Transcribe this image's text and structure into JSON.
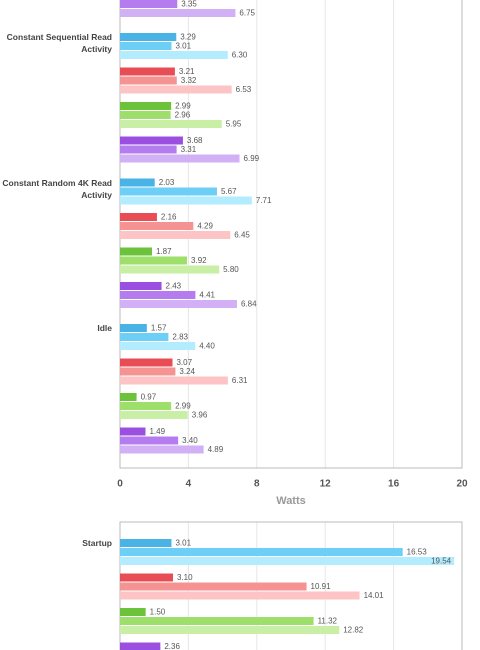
{
  "chart_data": [
    {
      "type": "bar",
      "orientation": "horizontal",
      "x_label": "Watts",
      "xlim": [
        0,
        20
      ],
      "xticks": [
        0,
        4,
        8,
        12,
        16,
        20
      ],
      "grid": true,
      "categories": [
        null,
        "Constant Sequential Read Activity",
        "Constant Random 4K Read Activity",
        "Idle"
      ],
      "series": [
        {
          "color": "#4ab3e6",
          "values": [
            null,
            3.29,
            2.03,
            1.57
          ],
          "value_labels": [
            null,
            "3.29",
            "2.03",
            "1.57"
          ]
        },
        {
          "color": "#6dcff6",
          "values": [
            null,
            3.01,
            5.67,
            2.83
          ],
          "value_labels": [
            null,
            "3.01",
            "5.67",
            "2.83"
          ]
        },
        {
          "color": "#b3ecff",
          "values": [
            null,
            6.3,
            7.71,
            4.4
          ],
          "value_labels": [
            null,
            "6.30",
            "7.71",
            "4.40"
          ]
        },
        {
          "color": "#e84c55",
          "values": [
            null,
            3.21,
            2.16,
            3.07
          ],
          "value_labels": [
            null,
            "3.21",
            "2.16",
            "3.07"
          ]
        },
        {
          "color": "#f59393",
          "values": [
            null,
            3.32,
            4.29,
            3.24
          ],
          "value_labels": [
            null,
            "3.32",
            "4.29",
            "3.24"
          ]
        },
        {
          "color": "#fcc4c4",
          "values": [
            null,
            6.53,
            6.45,
            6.31
          ],
          "value_labels": [
            null,
            "6.53",
            "6.45",
            "6.31"
          ]
        },
        {
          "color": "#6cc23a",
          "values": [
            null,
            2.99,
            1.87,
            0.97
          ],
          "value_labels": [
            null,
            "2.99",
            "1.87",
            "0.97"
          ]
        },
        {
          "color": "#9ddf6a",
          "values": [
            null,
            2.96,
            3.92,
            2.99
          ],
          "value_labels": [
            null,
            "2.96",
            "3.92",
            "2.99"
          ]
        },
        {
          "color": "#c9efa6",
          "values": [
            null,
            5.95,
            5.8,
            3.96
          ],
          "value_labels": [
            null,
            "5.95",
            "5.80",
            "3.96"
          ]
        },
        {
          "color": "#9b4fe0",
          "values": [
            null,
            3.68,
            2.43,
            1.49
          ],
          "value_labels": [
            null,
            "3.68",
            "2.43",
            "1.49"
          ]
        },
        {
          "color": "#b57cef",
          "values": [
            3.35,
            3.31,
            4.41,
            3.4
          ],
          "value_labels": [
            "3.35",
            "3.31",
            "4.41",
            "3.40"
          ]
        },
        {
          "color": "#d2b0f5",
          "values": [
            6.75,
            6.99,
            6.84,
            4.89
          ],
          "value_labels": [
            "6.75",
            "6.99",
            "6.84",
            "4.89"
          ]
        }
      ]
    },
    {
      "type": "bar",
      "orientation": "horizontal",
      "xlim": [
        0,
        20
      ],
      "xticks": [
        0,
        4,
        8,
        12,
        16,
        20
      ],
      "grid": true,
      "categories": [
        "Startup"
      ],
      "series": [
        {
          "color": "#4ab3e6",
          "values": [
            3.01
          ],
          "value_labels": [
            "3.01"
          ]
        },
        {
          "color": "#6dcff6",
          "values": [
            16.53
          ],
          "value_labels": [
            "16.53"
          ]
        },
        {
          "color": "#b3ecff",
          "values": [
            19.54
          ],
          "value_labels": [
            "19.54"
          ]
        },
        {
          "color": "#e84c55",
          "values": [
            3.1
          ],
          "value_labels": [
            "3.10"
          ]
        },
        {
          "color": "#f59393",
          "values": [
            10.91
          ],
          "value_labels": [
            "10.91"
          ]
        },
        {
          "color": "#fcc4c4",
          "values": [
            14.01
          ],
          "value_labels": [
            "14.01"
          ]
        },
        {
          "color": "#6cc23a",
          "values": [
            1.5
          ],
          "value_labels": [
            "1.50"
          ]
        },
        {
          "color": "#9ddf6a",
          "values": [
            11.32
          ],
          "value_labels": [
            "11.32"
          ]
        },
        {
          "color": "#c9efa6",
          "values": [
            12.82
          ],
          "value_labels": [
            "12.82"
          ]
        },
        {
          "color": "#9b4fe0",
          "values": [
            2.36
          ],
          "value_labels": [
            "2.36"
          ]
        },
        {
          "color": "#b57cef",
          "values": [
            null
          ],
          "value_labels": [
            null
          ]
        },
        {
          "color": "#d2b0f5",
          "values": [
            null
          ],
          "value_labels": [
            null
          ]
        }
      ]
    }
  ]
}
